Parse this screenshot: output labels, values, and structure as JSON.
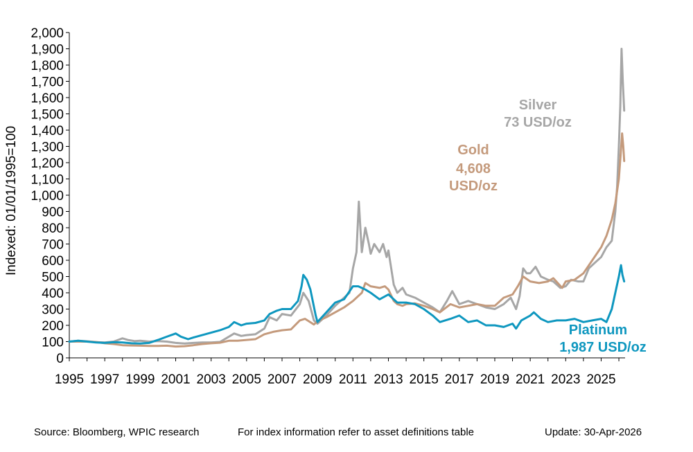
{
  "chart_data": {
    "type": "line",
    "ylabel": "Indexed: 01/01/1995=100",
    "ylim": [
      0,
      2000
    ],
    "xlim": [
      1995,
      2026.35
    ],
    "y_ticks": [
      "0",
      "100",
      "200",
      "300",
      "400",
      "500",
      "600",
      "700",
      "800",
      "900",
      "1,000",
      "1,100",
      "1,200",
      "1,300",
      "1,400",
      "1,500",
      "1,600",
      "1,700",
      "1,800",
      "1,900",
      "2,000"
    ],
    "x_ticks": [
      "1995",
      "1997",
      "1999",
      "2001",
      "2003",
      "2005",
      "2007",
      "2009",
      "2011",
      "2013",
      "2015",
      "2017",
      "2019",
      "2021",
      "2023",
      "2025"
    ],
    "grid": false,
    "colors": {
      "silver": "#A6A6A6",
      "gold": "#C49A7C",
      "platinum": "#0E97BF"
    },
    "series": [
      {
        "key": "silver",
        "x": [
          1995.0,
          1995.5,
          1996.0,
          1996.5,
          1997.0,
          1997.5,
          1998.0,
          1998.3,
          1998.7,
          1999.0,
          1999.5,
          2000.0,
          2000.5,
          2001.0,
          2001.5,
          2002.0,
          2002.5,
          2003.0,
          2003.5,
          2004.0,
          2004.3,
          2004.7,
          2005.0,
          2005.5,
          2006.0,
          2006.3,
          2006.7,
          2007.0,
          2007.5,
          2008.0,
          2008.2,
          2008.5,
          2008.8,
          2009.0,
          2009.5,
          2010.0,
          2010.5,
          2010.8,
          2011.0,
          2011.2,
          2011.33,
          2011.5,
          2011.7,
          2011.9,
          2012.0,
          2012.2,
          2012.5,
          2012.7,
          2012.9,
          2013.0,
          2013.3,
          2013.5,
          2013.8,
          2014.0,
          2014.5,
          2015.0,
          2015.5,
          2015.9,
          2016.3,
          2016.6,
          2017.0,
          2017.5,
          2018.0,
          2018.5,
          2019.0,
          2019.5,
          2019.9,
          2020.2,
          2020.4,
          2020.6,
          2020.8,
          2021.0,
          2021.3,
          2021.6,
          2022.0,
          2022.3,
          2022.7,
          2023.0,
          2023.3,
          2023.7,
          2024.0,
          2024.3,
          2024.6,
          2025.0,
          2025.3,
          2025.6,
          2025.8,
          2025.9,
          2026.0,
          2026.08,
          2026.15,
          2026.22,
          2026.3
        ],
        "y": [
          100,
          105,
          102,
          97,
          95,
          100,
          120,
          110,
          103,
          105,
          100,
          103,
          100,
          92,
          88,
          92,
          95,
          95,
          98,
          130,
          150,
          135,
          140,
          145,
          180,
          250,
          230,
          270,
          260,
          330,
          400,
          350,
          230,
          210,
          260,
          320,
          370,
          400,
          550,
          650,
          960,
          650,
          800,
          700,
          640,
          700,
          650,
          700,
          620,
          660,
          450,
          400,
          430,
          390,
          370,
          340,
          310,
          280,
          350,
          410,
          330,
          350,
          330,
          310,
          300,
          330,
          370,
          300,
          380,
          550,
          520,
          520,
          560,
          500,
          480,
          470,
          430,
          440,
          480,
          470,
          470,
          550,
          580,
          620,
          680,
          720,
          900,
          1050,
          1300,
          1550,
          1900,
          1700,
          1520
        ]
      },
      {
        "key": "gold",
        "x": [
          1995.0,
          1995.5,
          1996.0,
          1996.5,
          1997.0,
          1997.5,
          1998.0,
          1998.5,
          1999.0,
          1999.5,
          2000.0,
          2000.5,
          2001.0,
          2001.5,
          2002.0,
          2002.5,
          2003.0,
          2003.5,
          2004.0,
          2004.5,
          2005.0,
          2005.5,
          2006.0,
          2006.5,
          2007.0,
          2007.5,
          2008.0,
          2008.3,
          2008.8,
          2009.0,
          2009.5,
          2010.0,
          2010.5,
          2011.0,
          2011.5,
          2011.7,
          2012.0,
          2012.5,
          2012.8,
          2013.0,
          2013.3,
          2013.5,
          2013.8,
          2014.0,
          2014.5,
          2015.0,
          2015.5,
          2015.9,
          2016.5,
          2017.0,
          2017.5,
          2018.0,
          2018.5,
          2019.0,
          2019.5,
          2020.0,
          2020.3,
          2020.6,
          2021.0,
          2021.5,
          2022.0,
          2022.3,
          2022.8,
          2023.0,
          2023.5,
          2024.0,
          2024.5,
          2025.0,
          2025.3,
          2025.6,
          2025.8,
          2026.0,
          2026.1,
          2026.18,
          2026.25,
          2026.3
        ],
        "y": [
          100,
          100,
          100,
          98,
          90,
          85,
          78,
          76,
          75,
          73,
          73,
          75,
          70,
          72,
          78,
          85,
          90,
          93,
          105,
          105,
          110,
          115,
          145,
          160,
          170,
          175,
          230,
          240,
          205,
          225,
          250,
          280,
          310,
          350,
          400,
          460,
          440,
          430,
          440,
          420,
          350,
          330,
          320,
          330,
          335,
          320,
          300,
          280,
          330,
          310,
          320,
          330,
          320,
          320,
          370,
          390,
          440,
          500,
          470,
          460,
          470,
          490,
          430,
          470,
          480,
          520,
          600,
          680,
          750,
          850,
          950,
          1100,
          1250,
          1380,
          1300,
          1210
        ]
      },
      {
        "key": "platinum",
        "x": [
          1995.0,
          1995.5,
          1996.0,
          1996.5,
          1997.0,
          1997.5,
          1998.0,
          1998.5,
          1999.0,
          1999.5,
          2000.0,
          2000.5,
          2001.0,
          2001.3,
          2001.7,
          2002.0,
          2002.5,
          2003.0,
          2003.5,
          2004.0,
          2004.3,
          2004.7,
          2005.0,
          2005.5,
          2006.0,
          2006.3,
          2006.7,
          2007.0,
          2007.5,
          2007.9,
          2008.1,
          2008.2,
          2008.4,
          2008.6,
          2008.9,
          2009.0,
          2009.5,
          2010.0,
          2010.5,
          2011.0,
          2011.3,
          2011.7,
          2012.0,
          2012.5,
          2013.0,
          2013.5,
          2014.0,
          2014.5,
          2015.0,
          2015.5,
          2015.9,
          2016.5,
          2017.0,
          2017.5,
          2018.0,
          2018.5,
          2019.0,
          2019.5,
          2020.0,
          2020.2,
          2020.5,
          2021.0,
          2021.2,
          2021.6,
          2022.0,
          2022.5,
          2023.0,
          2023.5,
          2024.0,
          2024.5,
          2025.0,
          2025.3,
          2025.6,
          2025.8,
          2026.0,
          2026.12,
          2026.2,
          2026.3
        ],
        "y": [
          100,
          105,
          100,
          95,
          92,
          96,
          95,
          90,
          88,
          92,
          110,
          130,
          150,
          130,
          115,
          125,
          140,
          155,
          170,
          190,
          220,
          200,
          210,
          215,
          230,
          270,
          290,
          300,
          300,
          350,
          440,
          510,
          480,
          420,
          260,
          220,
          280,
          340,
          360,
          440,
          440,
          420,
          400,
          360,
          390,
          340,
          340,
          330,
          300,
          260,
          220,
          240,
          260,
          220,
          230,
          200,
          200,
          190,
          210,
          180,
          230,
          260,
          280,
          240,
          220,
          230,
          230,
          240,
          220,
          230,
          240,
          220,
          300,
          400,
          500,
          570,
          510,
          470
        ]
      }
    ],
    "labels": {
      "silver": [
        "Silver",
        "73 USD/oz"
      ],
      "gold": [
        "Gold",
        "4,608",
        "USD/oz"
      ],
      "platinum": [
        "Platinum",
        "1,987 USD/oz"
      ]
    }
  },
  "footer": {
    "source": "Source: Bloomberg, WPIC research",
    "note": "For index information refer to asset definitions table",
    "update": "Update: 30-Apr-2026"
  }
}
